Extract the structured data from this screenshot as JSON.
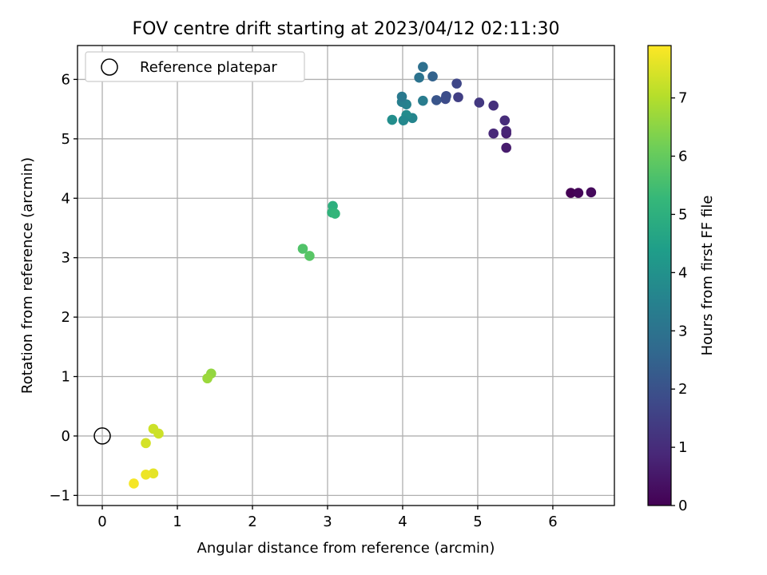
{
  "chart_data": {
    "type": "scatter",
    "title": "FOV centre drift starting at 2023/04/12 02:11:30",
    "xlabel": "Angular distance from reference (arcmin)",
    "ylabel": "Rotation from reference (arcmin)",
    "xlim": [
      -0.33,
      6.82
    ],
    "ylim": [
      -1.17,
      6.57
    ],
    "xticks": [
      0,
      1,
      2,
      3,
      4,
      5,
      6
    ],
    "yticks": [
      -1,
      0,
      1,
      2,
      3,
      4,
      5,
      6
    ],
    "grid": true,
    "legend": {
      "placement": "top-left",
      "label": "Reference platepar",
      "marker": "open-circle"
    },
    "reference_point": {
      "x": 0,
      "y": 0
    },
    "colorbar": {
      "label": "Hours from first FF file",
      "range": [
        0,
        7.9
      ],
      "ticks": [
        0,
        1,
        2,
        3,
        4,
        5,
        6,
        7
      ],
      "colormap": "viridis",
      "colors": [
        "#440154",
        "#482878",
        "#3e4989",
        "#31688e",
        "#26828e",
        "#1f9e89",
        "#35b779",
        "#6ece58",
        "#b5de2b",
        "#fde725"
      ]
    },
    "points": [
      {
        "x": 6.24,
        "y": 4.09,
        "hours": 0.0
      },
      {
        "x": 6.34,
        "y": 4.09,
        "hours": 0.1
      },
      {
        "x": 6.51,
        "y": 4.1,
        "hours": 0.2
      },
      {
        "x": 5.38,
        "y": 4.85,
        "hours": 0.6
      },
      {
        "x": 5.38,
        "y": 5.09,
        "hours": 0.7
      },
      {
        "x": 5.38,
        "y": 5.13,
        "hours": 0.8
      },
      {
        "x": 5.21,
        "y": 5.09,
        "hours": 0.9
      },
      {
        "x": 5.36,
        "y": 5.31,
        "hours": 1.0
      },
      {
        "x": 5.21,
        "y": 5.56,
        "hours": 1.1
      },
      {
        "x": 5.02,
        "y": 5.61,
        "hours": 1.3
      },
      {
        "x": 4.74,
        "y": 5.7,
        "hours": 1.5
      },
      {
        "x": 4.72,
        "y": 5.93,
        "hours": 1.7
      },
      {
        "x": 4.57,
        "y": 5.67,
        "hours": 1.8
      },
      {
        "x": 4.58,
        "y": 5.72,
        "hours": 1.9
      },
      {
        "x": 4.45,
        "y": 5.65,
        "hours": 2.1
      },
      {
        "x": 4.4,
        "y": 6.05,
        "hours": 2.5
      },
      {
        "x": 4.27,
        "y": 6.21,
        "hours": 2.9
      },
      {
        "x": 4.22,
        "y": 6.03,
        "hours": 3.0
      },
      {
        "x": 4.27,
        "y": 5.64,
        "hours": 3.3
      },
      {
        "x": 4.13,
        "y": 5.35,
        "hours": 3.6
      },
      {
        "x": 4.05,
        "y": 5.58,
        "hours": 3.5
      },
      {
        "x": 3.99,
        "y": 5.62,
        "hours": 3.4
      },
      {
        "x": 3.99,
        "y": 5.71,
        "hours": 3.2
      },
      {
        "x": 4.05,
        "y": 5.4,
        "hours": 3.8
      },
      {
        "x": 4.01,
        "y": 5.31,
        "hours": 3.7
      },
      {
        "x": 3.86,
        "y": 5.32,
        "hours": 3.9
      },
      {
        "x": 3.07,
        "y": 3.87,
        "hours": 5.0
      },
      {
        "x": 3.06,
        "y": 3.76,
        "hours": 5.1
      },
      {
        "x": 3.1,
        "y": 3.74,
        "hours": 5.2
      },
      {
        "x": 2.67,
        "y": 3.15,
        "hours": 5.7
      },
      {
        "x": 2.76,
        "y": 3.03,
        "hours": 5.8
      },
      {
        "x": 1.45,
        "y": 1.05,
        "hours": 6.6
      },
      {
        "x": 1.4,
        "y": 0.97,
        "hours": 6.7
      },
      {
        "x": 0.68,
        "y": 0.12,
        "hours": 7.3
      },
      {
        "x": 0.75,
        "y": 0.04,
        "hours": 7.3
      },
      {
        "x": 0.58,
        "y": -0.12,
        "hours": 7.4
      },
      {
        "x": 0.68,
        "y": -0.63,
        "hours": 7.6
      },
      {
        "x": 0.58,
        "y": -0.65,
        "hours": 7.7
      },
      {
        "x": 0.42,
        "y": -0.8,
        "hours": 7.8
      }
    ]
  }
}
